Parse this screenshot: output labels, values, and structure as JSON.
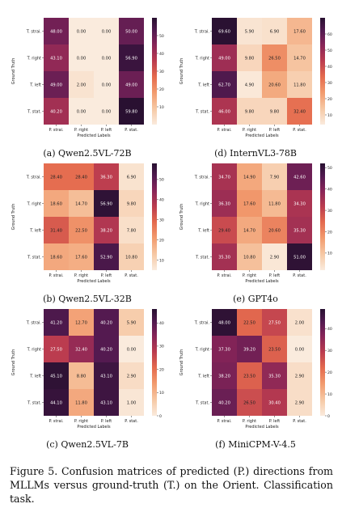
{
  "figure_caption": "Figure 5.  Confusion matrices of predicted (P.) directions from MLLMs versus ground-truth (T.) on the Orient. Classification task.",
  "chart_data": [
    {
      "type": "heatmap",
      "caption": "(a) Qwen2.5VL-72B",
      "xlabel": "Predicted Labels",
      "ylabel": "Ground Truth",
      "x_categories": [
        "P. strai.",
        "P. right",
        "P. left",
        "P. stat."
      ],
      "y_categories": [
        "T. strai.",
        "T. right",
        "T. left",
        "T. stat."
      ],
      "values": [
        [
          "48.00",
          "0.00",
          "0.00",
          "50.00"
        ],
        [
          "43.10",
          "0.00",
          "0.00",
          "56.90"
        ],
        [
          "49.00",
          "2.00",
          "0.00",
          "49.00"
        ],
        [
          "40.20",
          "0.00",
          "0.00",
          "59.80"
        ]
      ],
      "colorbar_ticks": [
        "10",
        "20",
        "30",
        "40",
        "50"
      ],
      "colorbar_range": [
        0,
        60
      ]
    },
    {
      "type": "heatmap",
      "caption": "(d) InternVL3-78B",
      "xlabel": "Predicted Labels",
      "ylabel": "Ground Truth",
      "x_categories": [
        "P. strai.",
        "P. right",
        "P. left",
        "P. stat."
      ],
      "y_categories": [
        "T. strai.",
        "T. right",
        "T. left",
        "T. stat."
      ],
      "values": [
        [
          "69.60",
          "5.90",
          "6.90",
          "17.60"
        ],
        [
          "49.00",
          "9.80",
          "26.50",
          "14.70"
        ],
        [
          "62.70",
          "4.90",
          "20.60",
          "11.80"
        ],
        [
          "46.00",
          "9.80",
          "9.80",
          "32.40"
        ]
      ],
      "colorbar_ticks": [
        "10",
        "20",
        "30",
        "40",
        "50",
        "60"
      ],
      "colorbar_range": [
        4,
        70
      ]
    },
    {
      "type": "heatmap",
      "caption": "(b) Qwen2.5VL-32B",
      "xlabel": "Predicted Labels",
      "ylabel": "Ground Truth",
      "x_categories": [
        "P. strai.",
        "P. right",
        "P. left",
        "P. stat."
      ],
      "y_categories": [
        "T. strai.",
        "T. right",
        "T. left",
        "T. stat."
      ],
      "values": [
        [
          "28.40",
          "28.40",
          "36.30",
          "6.90"
        ],
        [
          "18.60",
          "14.70",
          "56.90",
          "9.80"
        ],
        [
          "31.40",
          "22.50",
          "38.20",
          "7.80"
        ],
        [
          "18.60",
          "17.60",
          "52.90",
          "10.80"
        ]
      ],
      "colorbar_ticks": [
        "10",
        "20",
        "30",
        "40",
        "50"
      ],
      "colorbar_range": [
        5,
        58
      ]
    },
    {
      "type": "heatmap",
      "caption": "(e) GPT4o",
      "xlabel": "Predicted Labels",
      "ylabel": "Ground Truth",
      "x_categories": [
        "P. strai.",
        "P. right",
        "P. left",
        "P. stat."
      ],
      "y_categories": [
        "T. strai.",
        "T. right",
        "T. left",
        "T. stat."
      ],
      "values": [
        [
          "34.70",
          "14.90",
          "7.90",
          "42.60"
        ],
        [
          "36.30",
          "17.60",
          "11.80",
          "34.30"
        ],
        [
          "29.40",
          "14.70",
          "20.60",
          "35.30"
        ],
        [
          "35.30",
          "10.80",
          "2.90",
          "51.00"
        ]
      ],
      "colorbar_ticks": [
        "10",
        "20",
        "30",
        "40",
        "50"
      ],
      "colorbar_range": [
        2,
        52
      ]
    },
    {
      "type": "heatmap",
      "caption": "(c) Qwen2.5VL-7B",
      "xlabel": "Predicted Labels",
      "ylabel": "Ground Truth",
      "x_categories": [
        "P. strai.",
        "P. right",
        "P. left",
        "P. stat."
      ],
      "y_categories": [
        "T. strai.",
        "T. right",
        "T. left",
        "T. stat."
      ],
      "values": [
        [
          "41.20",
          "12.70",
          "40.20",
          "5.90"
        ],
        [
          "27.50",
          "32.40",
          "40.20",
          "0.00"
        ],
        [
          "45.10",
          "8.80",
          "43.10",
          "2.90"
        ],
        [
          "44.10",
          "11.80",
          "43.10",
          "1.00"
        ]
      ],
      "colorbar_ticks": [
        "0",
        "10",
        "20",
        "30",
        "40"
      ],
      "colorbar_range": [
        0,
        46
      ]
    },
    {
      "type": "heatmap",
      "caption": "(f) MiniCPM-V-4.5",
      "xlabel": "Predicted Labels",
      "ylabel": "Ground Truth",
      "x_categories": [
        "P. strai.",
        "P. right",
        "P. left",
        "P. stat."
      ],
      "y_categories": [
        "T. strai.",
        "T. right",
        "T. left",
        "T. stat."
      ],
      "values": [
        [
          "48.00",
          "22.50",
          "27.50",
          "2.00"
        ],
        [
          "37.30",
          "39.20",
          "23.50",
          "0.00"
        ],
        [
          "38.20",
          "23.50",
          "35.30",
          "2.90"
        ],
        [
          "40.20",
          "26.50",
          "30.40",
          "2.90"
        ]
      ],
      "colorbar_ticks": [
        "0",
        "10",
        "20",
        "30",
        "40"
      ],
      "colorbar_range": [
        0,
        49
      ]
    }
  ]
}
